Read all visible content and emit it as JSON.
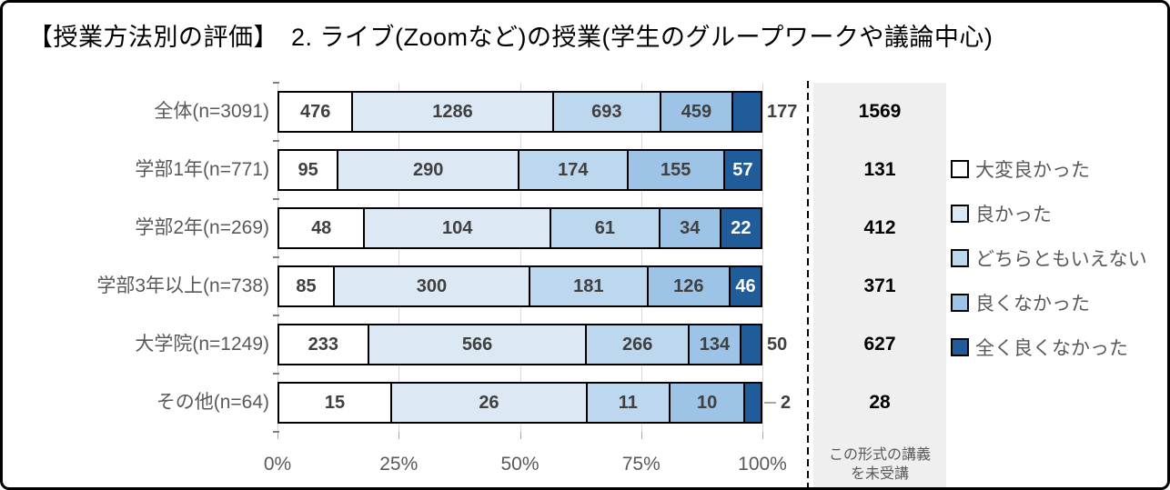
{
  "chart_data": {
    "type": "bar",
    "variant": "horizontal_stacked",
    "title": "【授業方法別の評価】　2. ライブ(Zoomなど)の授業(学生のグループワークや議論中心)",
    "categories": [
      "全体(n=3091)",
      "学部1年(n=771)",
      "学部2年(n=269)",
      "学部3年以上(n=738)",
      "大学院(n=1249)",
      "その他(n=64)"
    ],
    "series": [
      {
        "name": "大変良かった",
        "color": "#ffffff",
        "values": [
          476,
          95,
          48,
          85,
          233,
          15
        ]
      },
      {
        "name": "良かった",
        "color": "#dce8f4",
        "values": [
          1286,
          290,
          104,
          300,
          566,
          26
        ]
      },
      {
        "name": "どちらともいえない",
        "color": "#bdd7ee",
        "values": [
          693,
          174,
          61,
          181,
          266,
          11
        ]
      },
      {
        "name": "良くなかった",
        "color": "#9dc3e6",
        "values": [
          459,
          155,
          34,
          126,
          134,
          10
        ]
      },
      {
        "name": "全く良くなかった",
        "color": "#1f5c99",
        "values": [
          177,
          57,
          22,
          46,
          50,
          2
        ]
      }
    ],
    "row_totals": [
      3091,
      771,
      269,
      738,
      1249,
      64
    ],
    "last_segment_label_placement": [
      "outside",
      "inside",
      "inside",
      "inside",
      "outside",
      "outside_leader"
    ],
    "x_axis": {
      "ticks": [
        "0%",
        "25%",
        "50%",
        "75%",
        "100%"
      ],
      "range": [
        0,
        100
      ],
      "grid": true
    },
    "legend_position": "right",
    "not_attended_column": {
      "values": [
        1569,
        131,
        412,
        371,
        627,
        28
      ],
      "label": "この形式の講義を未受講",
      "label_lines": [
        "この形式の講義",
        "を未受講"
      ]
    }
  },
  "colors": {
    "bar_border": "#000000",
    "inside_label": "#404040",
    "inside_label_on_dark": "#ffffff",
    "category_label": "#595959",
    "axis_label": "#595959",
    "gridline": "#d9d9d9",
    "gray_column_bg": "#efefef",
    "leader_line": "#a6a6a6",
    "divider": "#000000"
  }
}
